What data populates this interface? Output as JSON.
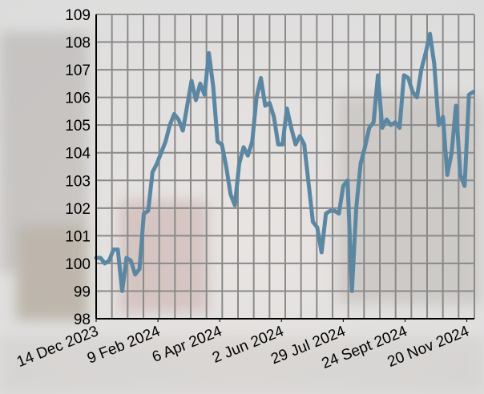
{
  "chart_data": {
    "type": "line",
    "x": [
      "2023-12-14",
      "2023-12-18",
      "2023-12-22",
      "2023-12-26",
      "2023-12-30",
      "2024-01-03",
      "2024-01-07",
      "2024-01-11",
      "2024-01-15",
      "2024-01-19",
      "2024-01-23",
      "2024-01-27",
      "2024-01-31",
      "2024-02-04",
      "2024-02-08",
      "2024-02-12",
      "2024-02-16",
      "2024-02-20",
      "2024-02-24",
      "2024-02-28",
      "2024-03-03",
      "2024-03-07",
      "2024-03-11",
      "2024-03-15",
      "2024-03-19",
      "2024-03-23",
      "2024-03-27",
      "2024-03-31",
      "2024-04-04",
      "2024-04-08",
      "2024-04-12",
      "2024-04-16",
      "2024-04-20",
      "2024-04-24",
      "2024-04-28",
      "2024-05-02",
      "2024-05-06",
      "2024-05-10",
      "2024-05-14",
      "2024-05-18",
      "2024-05-22",
      "2024-05-26",
      "2024-05-30",
      "2024-06-03",
      "2024-06-07",
      "2024-06-11",
      "2024-06-15",
      "2024-06-19",
      "2024-06-23",
      "2024-06-27",
      "2024-07-01",
      "2024-07-05",
      "2024-07-09",
      "2024-07-13",
      "2024-07-17",
      "2024-07-21",
      "2024-07-25",
      "2024-07-29",
      "2024-08-02",
      "2024-08-06",
      "2024-08-10",
      "2024-08-14",
      "2024-08-18",
      "2024-08-22",
      "2024-08-26",
      "2024-08-30",
      "2024-09-03",
      "2024-09-07",
      "2024-09-11",
      "2024-09-15",
      "2024-09-19",
      "2024-09-23",
      "2024-09-27",
      "2024-10-01",
      "2024-10-05",
      "2024-10-09",
      "2024-10-13",
      "2024-10-17",
      "2024-10-21",
      "2024-10-25",
      "2024-10-29",
      "2024-11-02",
      "2024-11-06",
      "2024-11-10",
      "2024-11-14",
      "2024-11-18",
      "2024-11-22",
      "2024-11-26"
    ],
    "series": [
      {
        "color": "#5b87a2",
        "values": [
          100.2,
          100.2,
          100.0,
          100.1,
          100.5,
          100.5,
          99.0,
          100.2,
          100.1,
          99.6,
          99.8,
          101.8,
          101.9,
          103.3,
          103.6,
          104.0,
          104.4,
          105.0,
          105.4,
          105.2,
          104.8,
          105.7,
          106.6,
          105.9,
          106.5,
          106.1,
          107.6,
          106.4,
          104.4,
          104.3,
          103.5,
          102.5,
          102.1,
          103.6,
          104.2,
          103.9,
          104.4,
          106.0,
          106.7,
          105.7,
          105.8,
          105.3,
          104.3,
          104.3,
          105.6,
          104.9,
          104.3,
          104.6,
          104.3,
          102.9,
          101.5,
          101.3,
          100.4,
          101.8,
          101.9,
          101.9,
          101.8,
          102.8,
          103.0,
          99.0,
          102.0,
          103.6,
          104.2,
          104.9,
          105.1,
          106.8,
          104.9,
          105.2,
          105.0,
          105.1,
          104.9,
          106.8,
          106.7,
          106.2,
          106.0,
          107.0,
          107.6,
          108.3,
          107.2,
          105.0,
          105.3,
          103.2,
          104.0,
          105.7,
          103.2,
          102.8,
          106.1,
          106.2
        ]
      }
    ],
    "xlim": [
      "2023-12-14",
      "2024-11-27"
    ],
    "xticks": [
      {
        "value": "2023-12-14",
        "label": "14 Dec 2023"
      },
      {
        "value": "2024-02-09",
        "label": "9 Feb 2024"
      },
      {
        "value": "2024-04-06",
        "label": "6 Apr 2024"
      },
      {
        "value": "2024-06-02",
        "label": "2 Jun 2024"
      },
      {
        "value": "2024-07-29",
        "label": "29 Jul 2024"
      },
      {
        "value": "2024-09-24",
        "label": "24 Sept 2024"
      },
      {
        "value": "2024-11-20",
        "label": "20 Nov 2024"
      }
    ],
    "ylim": [
      98,
      109
    ],
    "yticks": [
      98,
      99,
      100,
      101,
      102,
      103,
      104,
      105,
      106,
      107,
      108,
      109
    ],
    "grid": true
  }
}
